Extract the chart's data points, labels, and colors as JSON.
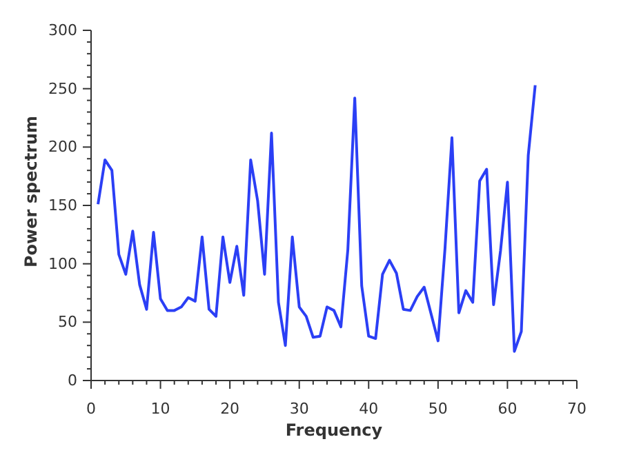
{
  "chart_data": {
    "type": "line",
    "xlabel": "Frequency",
    "ylabel": "Power spectrum",
    "x": [
      1,
      2,
      3,
      4,
      5,
      6,
      7,
      8,
      9,
      10,
      11,
      12,
      13,
      14,
      15,
      16,
      17,
      18,
      19,
      20,
      21,
      22,
      23,
      24,
      25,
      26,
      27,
      28,
      29,
      30,
      31,
      32,
      33,
      34,
      35,
      36,
      37,
      38,
      39,
      40,
      41,
      42,
      43,
      44,
      45,
      46,
      47,
      48,
      49,
      50,
      51,
      52,
      53,
      54,
      55,
      56,
      57,
      58,
      59,
      60,
      61,
      62,
      63,
      64
    ],
    "series": [
      {
        "color": "#2b3ff5",
        "values": [
          151,
          189,
          180,
          108,
          91,
          128,
          82,
          61,
          127,
          70,
          60,
          60,
          63,
          71,
          68,
          123,
          61,
          55,
          123,
          84,
          115,
          73,
          189,
          154,
          91,
          212,
          67,
          30,
          123,
          63,
          55,
          37,
          38,
          63,
          60,
          46,
          112,
          242,
          81,
          38,
          36,
          91,
          103,
          92,
          61,
          60,
          72,
          80,
          57,
          34,
          113,
          208,
          58,
          77,
          67,
          171,
          181,
          65,
          111,
          170,
          25,
          42,
          193,
          253
        ]
      }
    ],
    "xlim": [
      0,
      70
    ],
    "ylim": [
      0,
      300
    ],
    "xticks": [
      0,
      {
        "value": 2,
        "label": null
      },
      {
        "value": 4,
        "label": null
      },
      {
        "value": 6,
        "label": null
      },
      {
        "value": 8,
        "label": null
      },
      10,
      {
        "value": 12,
        "label": null
      },
      {
        "value": 14,
        "label": null
      },
      {
        "value": 16,
        "label": null
      },
      {
        "value": 18,
        "label": null
      },
      20,
      {
        "value": 22,
        "label": null
      },
      {
        "value": 24,
        "label": null
      },
      {
        "value": 26,
        "label": null
      },
      {
        "value": 28,
        "label": null
      },
      30,
      {
        "value": 32,
        "label": null
      },
      {
        "value": 34,
        "label": null
      },
      {
        "value": 36,
        "label": null
      },
      {
        "value": 38,
        "label": null
      },
      40,
      {
        "value": 42,
        "label": null
      },
      {
        "value": 44,
        "label": null
      },
      {
        "value": 46,
        "label": null
      },
      {
        "value": 48,
        "label": null
      },
      50,
      {
        "value": 52,
        "label": null
      },
      {
        "value": 54,
        "label": null
      },
      {
        "value": 56,
        "label": null
      },
      {
        "value": 58,
        "label": null
      },
      60,
      {
        "value": 62,
        "label": null
      },
      {
        "value": 64,
        "label": null
      },
      {
        "value": 66,
        "label": null
      },
      {
        "value": 68,
        "label": null
      },
      70
    ],
    "yticks": [
      0,
      {
        "value": 10,
        "label": null
      },
      {
        "value": 20,
        "label": null
      },
      {
        "value": 30,
        "label": null
      },
      {
        "value": 40,
        "label": null
      },
      50,
      {
        "value": 60,
        "label": null
      },
      {
        "value": 70,
        "label": null
      },
      {
        "value": 80,
        "label": null
      },
      {
        "value": 90,
        "label": null
      },
      100,
      {
        "value": 110,
        "label": null
      },
      {
        "value": 120,
        "label": null
      },
      {
        "value": 130,
        "label": null
      },
      {
        "value": 140,
        "label": null
      },
      150,
      {
        "value": 160,
        "label": null
      },
      {
        "value": 170,
        "label": null
      },
      {
        "value": 180,
        "label": null
      },
      {
        "value": 190,
        "label": null
      },
      200,
      {
        "value": 210,
        "label": null
      },
      {
        "value": 220,
        "label": null
      },
      {
        "value": 230,
        "label": null
      },
      {
        "value": 240,
        "label": null
      },
      250,
      {
        "value": 260,
        "label": null
      },
      {
        "value": 270,
        "label": null
      },
      {
        "value": 280,
        "label": null
      },
      {
        "value": 290,
        "label": null
      },
      300
    ],
    "grid": false,
    "legend": false,
    "marker": "none",
    "line_style": "solid"
  }
}
